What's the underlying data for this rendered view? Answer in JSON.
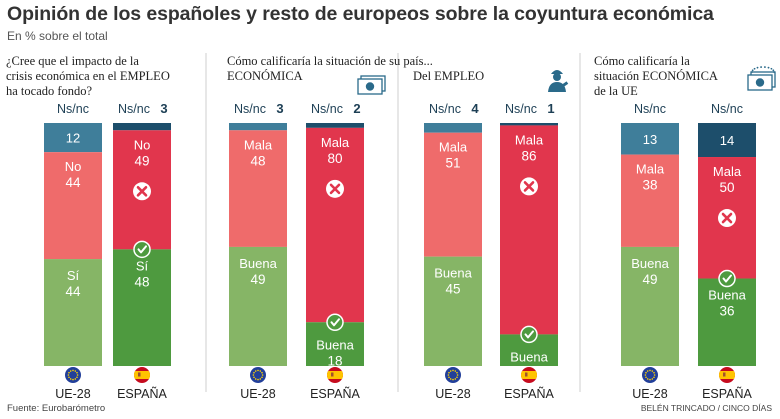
{
  "title": "Opinión de los españoles y resto de europeos sobre la coyuntura económica",
  "subtitle": "En % sobre el total",
  "footer": {
    "source": "Fuente: Eurobarómetro",
    "credit": "BELÉN TRINCADO / CINCO DÍAS"
  },
  "colors": {
    "ue_nsnc": "#3f7e9a",
    "ue_neg": "#ef6b6b",
    "ue_pos": "#86b566",
    "es_nsnc": "#1d4e6b",
    "es_neg": "#e1364d",
    "es_pos": "#4e9a3f",
    "cross": "#e1364d",
    "check": "#4e9a3f"
  },
  "chart_data": [
    {
      "type": "bar",
      "question": [
        "¿Cree que el impacto de la",
        "crisis económica en el EMPLEO",
        "ha tocado fondo?"
      ],
      "categories": [
        "UE-28",
        "ESPAÑA"
      ],
      "series": [
        {
          "name": "Sí",
          "values": [
            44,
            48
          ]
        },
        {
          "name": "No",
          "values": [
            44,
            49
          ]
        },
        {
          "name": "Ns/nc",
          "values": [
            12,
            3
          ]
        }
      ],
      "icon": ""
    },
    {
      "type": "bar",
      "question": [
        "Cómo calificaría la situación de su país..."
      ],
      "subheading": "ECONÓMICA",
      "categories": [
        "UE-28",
        "ESPAÑA"
      ],
      "series": [
        {
          "name": "Buena",
          "values": [
            49,
            18
          ]
        },
        {
          "name": "Mala",
          "values": [
            48,
            80
          ]
        },
        {
          "name": "Ns/nc",
          "values": [
            3,
            2
          ]
        }
      ],
      "icon": "banknote-icon"
    },
    {
      "type": "bar",
      "subheading": "Del EMPLEO",
      "categories": [
        "UE-28",
        "ESPAÑA"
      ],
      "series": [
        {
          "name": "Buena",
          "values": [
            45,
            13
          ]
        },
        {
          "name": "Mala",
          "values": [
            51,
            86
          ]
        },
        {
          "name": "Ns/nc",
          "values": [
            4,
            1
          ]
        }
      ],
      "icon": "worker-icon"
    },
    {
      "type": "bar",
      "question": [
        "Cómo calificaría la",
        "situación ECONÓMICA",
        "de la UE"
      ],
      "categories": [
        "UE-28",
        "ESPAÑA"
      ],
      "series": [
        {
          "name": "Buena",
          "values": [
            49,
            36
          ]
        },
        {
          "name": "Mala",
          "values": [
            38,
            50
          ]
        },
        {
          "name": "Ns/nc",
          "values": [
            13,
            14
          ]
        }
      ],
      "icon": "eu-banknote-icon"
    }
  ]
}
